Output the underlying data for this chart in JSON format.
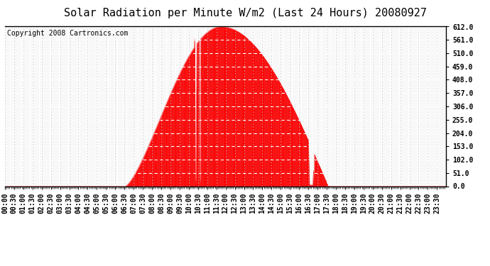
{
  "title": "Solar Radiation per Minute W/m2 (Last 24 Hours) 20080927",
  "copyright": "Copyright 2008 Cartronics.com",
  "background_color": "#ffffff",
  "plot_bg_color": "#ffffff",
  "fill_color": "#ff0000",
  "line_color": "#ff0000",
  "dashed_line_color": "#ff0000",
  "grid_color": "#c0c0c0",
  "y_ticks": [
    0.0,
    51.0,
    102.0,
    153.0,
    204.0,
    255.0,
    306.0,
    357.0,
    408.0,
    459.0,
    510.0,
    561.0,
    612.0
  ],
  "ylim": [
    0.0,
    612.0
  ],
  "num_points": 1440,
  "sunrise_index": 392,
  "sunset_index": 1055,
  "peak_index": 705,
  "peak_value": 612.0,
  "x_tick_indices": [
    0,
    30,
    60,
    90,
    120,
    150,
    180,
    210,
    240,
    270,
    300,
    330,
    360,
    390,
    420,
    450,
    480,
    510,
    540,
    570,
    600,
    630,
    660,
    690,
    720,
    750,
    780,
    810,
    840,
    870,
    900,
    930,
    960,
    990,
    1020,
    1050,
    1080,
    1110,
    1140,
    1170,
    1200,
    1230,
    1260,
    1290,
    1320,
    1350,
    1380,
    1410
  ],
  "x_tick_labels": [
    "00:00",
    "00:30",
    "01:00",
    "01:30",
    "02:00",
    "02:30",
    "03:00",
    "03:30",
    "04:00",
    "04:30",
    "05:00",
    "05:30",
    "06:00",
    "06:30",
    "07:00",
    "07:30",
    "08:00",
    "08:30",
    "09:00",
    "09:30",
    "10:00",
    "10:30",
    "11:00",
    "11:30",
    "12:00",
    "12:30",
    "13:00",
    "13:30",
    "14:00",
    "14:30",
    "15:00",
    "15:30",
    "16:00",
    "16:30",
    "17:00",
    "17:30",
    "18:00",
    "18:30",
    "19:00",
    "19:30",
    "20:00",
    "20:30",
    "21:00",
    "21:30",
    "22:00",
    "22:30",
    "23:00",
    "23:30"
  ],
  "title_fontsize": 11,
  "copyright_fontsize": 7,
  "tick_fontsize": 7
}
